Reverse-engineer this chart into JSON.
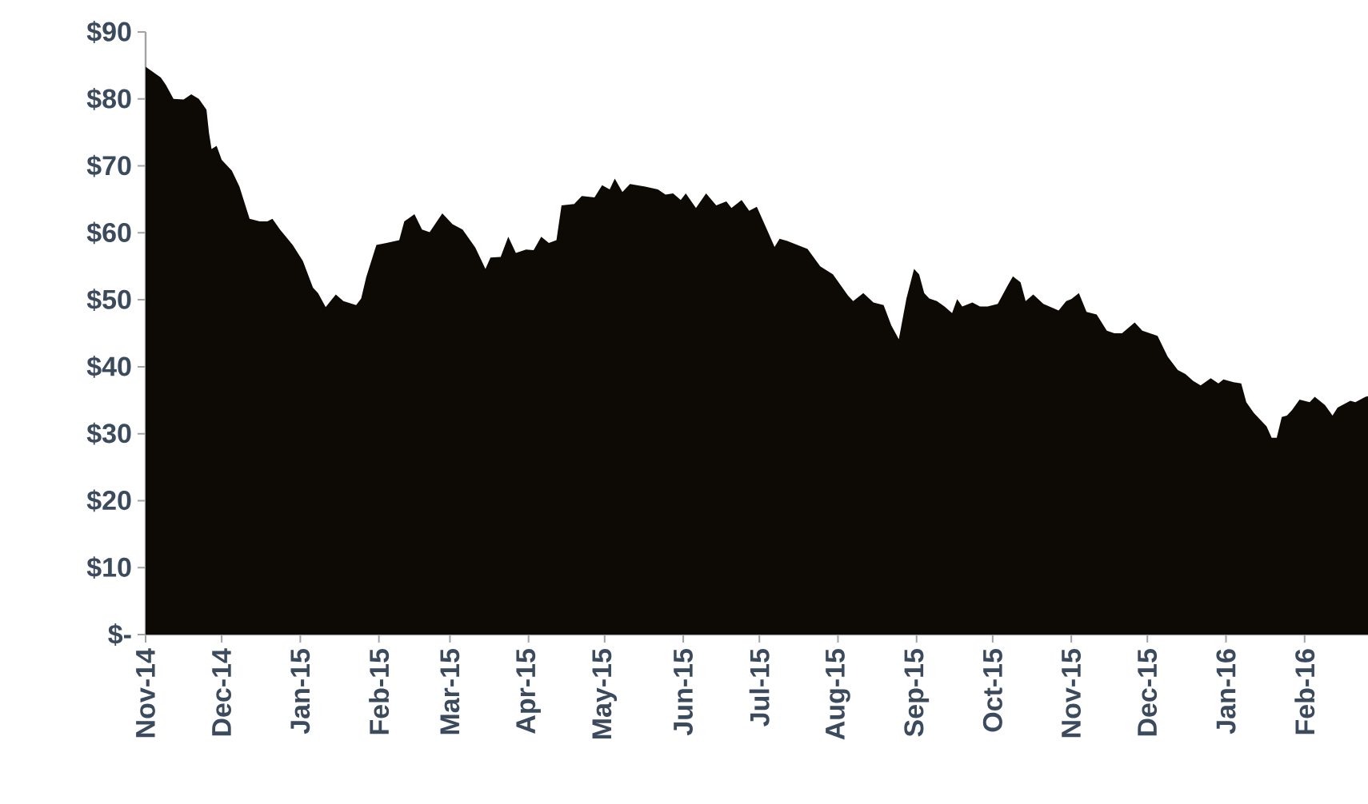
{
  "chart_data": {
    "type": "area",
    "color": "#0d0905",
    "xlim": [
      "2014-11-01",
      "2016-02-26"
    ],
    "ylim": [
      0,
      90
    ],
    "xticks": [
      {
        "value": "2014-11-01",
        "label": "Nov-14"
      },
      {
        "value": "2014-12-01",
        "label": "Dec-14"
      },
      {
        "value": "2015-01-01",
        "label": "Jan-15"
      },
      {
        "value": "2015-02-01",
        "label": "Feb-15"
      },
      {
        "value": "2015-03-01",
        "label": "Mar-15"
      },
      {
        "value": "2015-04-01",
        "label": "Apr-15"
      },
      {
        "value": "2015-05-01",
        "label": "May-15"
      },
      {
        "value": "2015-06-01",
        "label": "Jun-15"
      },
      {
        "value": "2015-07-01",
        "label": "Jul-15"
      },
      {
        "value": "2015-08-01",
        "label": "Aug-15"
      },
      {
        "value": "2015-09-01",
        "label": "Sep-15"
      },
      {
        "value": "2015-10-01",
        "label": "Oct-15"
      },
      {
        "value": "2015-11-01",
        "label": "Nov-15"
      },
      {
        "value": "2015-12-01",
        "label": "Dec-15"
      },
      {
        "value": "2016-01-01",
        "label": "Jan-16"
      },
      {
        "value": "2016-02-01",
        "label": "Feb-16"
      }
    ],
    "yticks": [
      {
        "value": 0,
        "label": "$-"
      },
      {
        "value": 10,
        "label": "$10"
      },
      {
        "value": 20,
        "label": "$20"
      },
      {
        "value": 30,
        "label": "$30"
      },
      {
        "value": 40,
        "label": "$40"
      },
      {
        "value": 50,
        "label": "$50"
      },
      {
        "value": 60,
        "label": "$60"
      },
      {
        "value": 70,
        "label": "$70"
      },
      {
        "value": 80,
        "label": "$80"
      },
      {
        "value": 90,
        "label": "$90"
      }
    ],
    "x": [
      "2014-11-01",
      "2014-11-04",
      "2014-11-07",
      "2014-11-09",
      "2014-11-12",
      "2014-11-16",
      "2014-11-19",
      "2014-11-22",
      "2014-11-25",
      "2014-11-26",
      "2014-11-27",
      "2014-11-29",
      "2014-12-01",
      "2014-12-05",
      "2014-12-08",
      "2014-12-12",
      "2014-12-16",
      "2014-12-19",
      "2014-12-21",
      "2014-12-24",
      "2014-12-29",
      "2015-01-02",
      "2015-01-06",
      "2015-01-08",
      "2015-01-11",
      "2015-01-15",
      "2015-01-18",
      "2015-01-23",
      "2015-01-25",
      "2015-01-27",
      "2015-01-31",
      "2015-02-04",
      "2015-02-09",
      "2015-02-11",
      "2015-02-15",
      "2015-02-18",
      "2015-02-21",
      "2015-02-26",
      "2015-03-02",
      "2015-03-06",
      "2015-03-11",
      "2015-03-15",
      "2015-03-17",
      "2015-03-21",
      "2015-03-24",
      "2015-03-27",
      "2015-03-31",
      "2015-04-03",
      "2015-04-06",
      "2015-04-09",
      "2015-04-12",
      "2015-04-14",
      "2015-04-19",
      "2015-04-22",
      "2015-04-27",
      "2015-04-30",
      "2015-05-03",
      "2015-05-05",
      "2015-05-08",
      "2015-05-11",
      "2015-05-17",
      "2015-05-22",
      "2015-05-25",
      "2015-05-28",
      "2015-05-31",
      "2015-06-02",
      "2015-06-06",
      "2015-06-10",
      "2015-06-14",
      "2015-06-18",
      "2015-06-20",
      "2015-06-24",
      "2015-06-27",
      "2015-06-30",
      "2015-07-04",
      "2015-07-07",
      "2015-07-09",
      "2015-07-12",
      "2015-07-16",
      "2015-07-20",
      "2015-07-25",
      "2015-07-30",
      "2015-08-05",
      "2015-08-07",
      "2015-08-11",
      "2015-08-15",
      "2015-08-19",
      "2015-08-22",
      "2015-08-25",
      "2015-08-28",
      "2015-08-31",
      "2015-09-02",
      "2015-09-04",
      "2015-09-06",
      "2015-09-09",
      "2015-09-12",
      "2015-09-15",
      "2015-09-17",
      "2015-09-19",
      "2015-09-23",
      "2015-09-26",
      "2015-09-29",
      "2015-10-03",
      "2015-10-07",
      "2015-10-09",
      "2015-10-12",
      "2015-10-14",
      "2015-10-17",
      "2015-10-21",
      "2015-10-27",
      "2015-10-30",
      "2015-11-01",
      "2015-11-04",
      "2015-11-07",
      "2015-11-11",
      "2015-11-15",
      "2015-11-18",
      "2015-11-21",
      "2015-11-26",
      "2015-11-29",
      "2015-12-05",
      "2015-12-09",
      "2015-12-13",
      "2015-12-16",
      "2015-12-19",
      "2015-12-22",
      "2015-12-26",
      "2015-12-29",
      "2015-12-31",
      "2016-01-04",
      "2016-01-07",
      "2016-01-09",
      "2016-01-12",
      "2016-01-17",
      "2016-01-19",
      "2016-01-21",
      "2016-01-23",
      "2016-01-25",
      "2016-01-27",
      "2016-01-30",
      "2016-02-03",
      "2016-02-05",
      "2016-02-09",
      "2016-02-12",
      "2016-02-14",
      "2016-02-19",
      "2016-02-21",
      "2016-02-25",
      "2016-02-26"
    ],
    "values": [
      84.8,
      84.0,
      83.2,
      82.1,
      80.0,
      79.9,
      80.7,
      80.0,
      78.4,
      74.9,
      72.5,
      73.0,
      70.9,
      69.3,
      66.9,
      62.1,
      61.7,
      61.7,
      62.1,
      60.5,
      58.2,
      55.8,
      51.8,
      51.0,
      48.9,
      50.8,
      49.8,
      49.2,
      50.2,
      53.4,
      58.2,
      58.5,
      58.9,
      61.7,
      62.8,
      60.5,
      60.1,
      62.9,
      61.3,
      60.5,
      57.8,
      54.6,
      56.3,
      56.4,
      59.4,
      57.0,
      57.5,
      57.4,
      59.4,
      58.5,
      58.9,
      64.1,
      64.3,
      65.5,
      65.3,
      67.1,
      66.5,
      68.1,
      66.1,
      67.3,
      66.9,
      66.5,
      65.7,
      65.9,
      64.9,
      65.9,
      63.7,
      65.9,
      64.1,
      64.7,
      63.7,
      64.9,
      63.3,
      63.9,
      60.5,
      57.9,
      59.1,
      58.8,
      58.2,
      57.6,
      55.0,
      53.8,
      50.6,
      49.8,
      51.0,
      49.6,
      49.2,
      46.2,
      44.1,
      50.2,
      54.6,
      53.8,
      51.0,
      50.2,
      49.8,
      49.0,
      48.0,
      50.1,
      49.0,
      49.6,
      49.0,
      49.0,
      49.4,
      52.2,
      53.5,
      52.6,
      49.8,
      50.8,
      49.4,
      48.4,
      49.8,
      50.1,
      51.0,
      48.2,
      47.8,
      45.4,
      45.0,
      45.0,
      46.6,
      45.4,
      44.6,
      41.5,
      39.5,
      38.9,
      37.9,
      37.2,
      38.3,
      37.5,
      38.1,
      37.7,
      37.5,
      34.7,
      33.1,
      31.1,
      29.4,
      29.4,
      32.5,
      32.7,
      33.5,
      35.1,
      34.7,
      35.5,
      34.3,
      32.7,
      33.9,
      34.9,
      34.7,
      35.5,
      35.6
    ]
  }
}
